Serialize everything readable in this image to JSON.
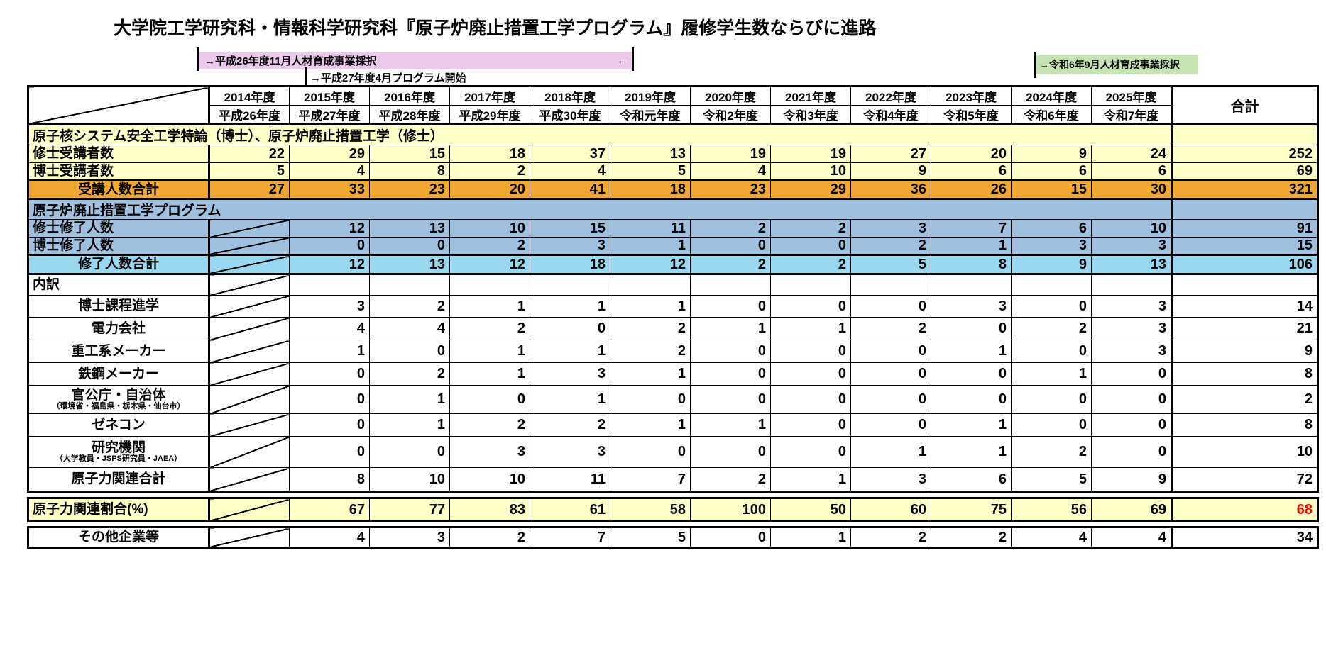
{
  "title": "大学院工学研究科・情報科学研究科『原子炉廃止措置工学プログラム』履修学生数ならびに進路",
  "annotations": {
    "h26_adoption": {
      "text": "→平成26年度11月人材育成事業採択",
      "end_arrow": "←",
      "bg": "#EBC9EB"
    },
    "h27_start": {
      "text": "→平成27年度4月プログラム開始"
    },
    "r6_adoption": {
      "text": "→令和6年9月人材育成事業採択",
      "bg": "#C6E4B3"
    }
  },
  "colors": {
    "section_yellow": "#FFFFC8",
    "total_orange": "#F1A833",
    "program_blue": "#A0C0E0",
    "completed_lightblue": "#99D8F0",
    "ratio_red": "#FF0000"
  },
  "table": {
    "total_label": "合計",
    "years": [
      {
        "w": "2014年度",
        "j": "平成26年度"
      },
      {
        "w": "2015年度",
        "j": "平成27年度"
      },
      {
        "w": "2016年度",
        "j": "平成28年度"
      },
      {
        "w": "2017年度",
        "j": "平成29年度"
      },
      {
        "w": "2018年度",
        "j": "平成30年度"
      },
      {
        "w": "2019年度",
        "j": "令和元年度"
      },
      {
        "w": "2020年度",
        "j": "令和2年度"
      },
      {
        "w": "2021年度",
        "j": "令和3年度"
      },
      {
        "w": "2022年度",
        "j": "令和4年度"
      },
      {
        "w": "2023年度",
        "j": "令和5年度"
      },
      {
        "w": "2024年度",
        "j": "令和6年度"
      },
      {
        "w": "2025年度",
        "j": "令和7年度"
      }
    ],
    "rows": [
      {
        "id": "band_courses",
        "band": true,
        "label": "原子核システム安全工学特論（博士）、原子炉廃止措置工学（修士）"
      },
      {
        "id": "masters_enrolled",
        "label": "修士受講者数",
        "values": [
          22,
          29,
          15,
          18,
          37,
          13,
          19,
          19,
          27,
          20,
          9,
          24
        ],
        "total": 252
      },
      {
        "id": "doctoral_enrolled",
        "label": "博士受講者数",
        "values": [
          5,
          4,
          8,
          2,
          4,
          5,
          4,
          10,
          9,
          6,
          6,
          6
        ],
        "total": 69
      },
      {
        "id": "enrolled_total",
        "label": "受講人数合計",
        "values": [
          27,
          33,
          23,
          20,
          41,
          18,
          23,
          29,
          36,
          26,
          15,
          30
        ],
        "total": 321
      },
      {
        "id": "band_program",
        "band": true,
        "label": "原子炉廃止措置工学プログラム"
      },
      {
        "id": "masters_completed",
        "label": "修士修了人数",
        "values": [
          null,
          12,
          13,
          10,
          15,
          11,
          2,
          2,
          3,
          7,
          6,
          10
        ],
        "total": 91
      },
      {
        "id": "doctoral_completed",
        "label": "博士修了人数",
        "values": [
          null,
          0,
          0,
          2,
          3,
          1,
          0,
          0,
          2,
          1,
          3,
          3
        ],
        "total": 15
      },
      {
        "id": "completed_total",
        "label": "修了人数合計",
        "values": [
          null,
          12,
          13,
          12,
          18,
          12,
          2,
          2,
          5,
          8,
          9,
          13
        ],
        "total": 106
      },
      {
        "id": "breakdown_header",
        "label": "内訳",
        "values": [
          null,
          "",
          "",
          "",
          "",
          "",
          "",
          "",
          "",
          "",
          "",
          ""
        ],
        "total": ""
      },
      {
        "id": "phd_advance",
        "label": "博士課程進学",
        "values": [
          null,
          3,
          2,
          1,
          1,
          1,
          0,
          0,
          0,
          3,
          0,
          3
        ],
        "total": 14
      },
      {
        "id": "electric_power",
        "label": "電力会社",
        "values": [
          null,
          4,
          4,
          2,
          0,
          2,
          1,
          1,
          2,
          0,
          2,
          3
        ],
        "total": 21
      },
      {
        "id": "heavy_industry",
        "label": "重工系メーカー",
        "values": [
          null,
          1,
          0,
          1,
          1,
          2,
          0,
          0,
          0,
          1,
          0,
          3
        ],
        "total": 9
      },
      {
        "id": "steel_maker",
        "label": "鉄鋼メーカー",
        "values": [
          null,
          0,
          2,
          1,
          3,
          1,
          0,
          0,
          0,
          0,
          1,
          0
        ],
        "total": 8
      },
      {
        "id": "government",
        "label": "官公庁・自治体",
        "sublabel": "（環境省・福島県・栃木県・仙台市）",
        "values": [
          null,
          0,
          1,
          0,
          1,
          0,
          0,
          0,
          0,
          0,
          0,
          0
        ],
        "total": 2
      },
      {
        "id": "general_contractor",
        "label": "ゼネコン",
        "values": [
          null,
          0,
          1,
          2,
          2,
          1,
          1,
          0,
          0,
          1,
          0,
          0
        ],
        "total": 8
      },
      {
        "id": "research_institute",
        "label": "研究機関",
        "sublabel": "（大学教員・JSPS研究員・JAEA）",
        "values": [
          null,
          0,
          0,
          3,
          3,
          0,
          0,
          0,
          1,
          1,
          2,
          0
        ],
        "total": 10
      },
      {
        "id": "nuclear_related_total",
        "label": "原子力関連合計",
        "values": [
          null,
          8,
          10,
          10,
          11,
          7,
          2,
          1,
          3,
          6,
          5,
          9
        ],
        "total": 72
      }
    ],
    "ratio_row": {
      "id": "nuclear_ratio",
      "label": "原子力関連割合(%)",
      "values": [
        null,
        67,
        77,
        83,
        61,
        58,
        100,
        50,
        60,
        75,
        56,
        69
      ],
      "total": 68,
      "total_color": "#FF0000"
    },
    "other_row": {
      "id": "other_companies",
      "label": "その他企業等",
      "values": [
        null,
        4,
        3,
        2,
        7,
        5,
        0,
        1,
        2,
        2,
        4,
        4
      ],
      "total": 34
    }
  }
}
